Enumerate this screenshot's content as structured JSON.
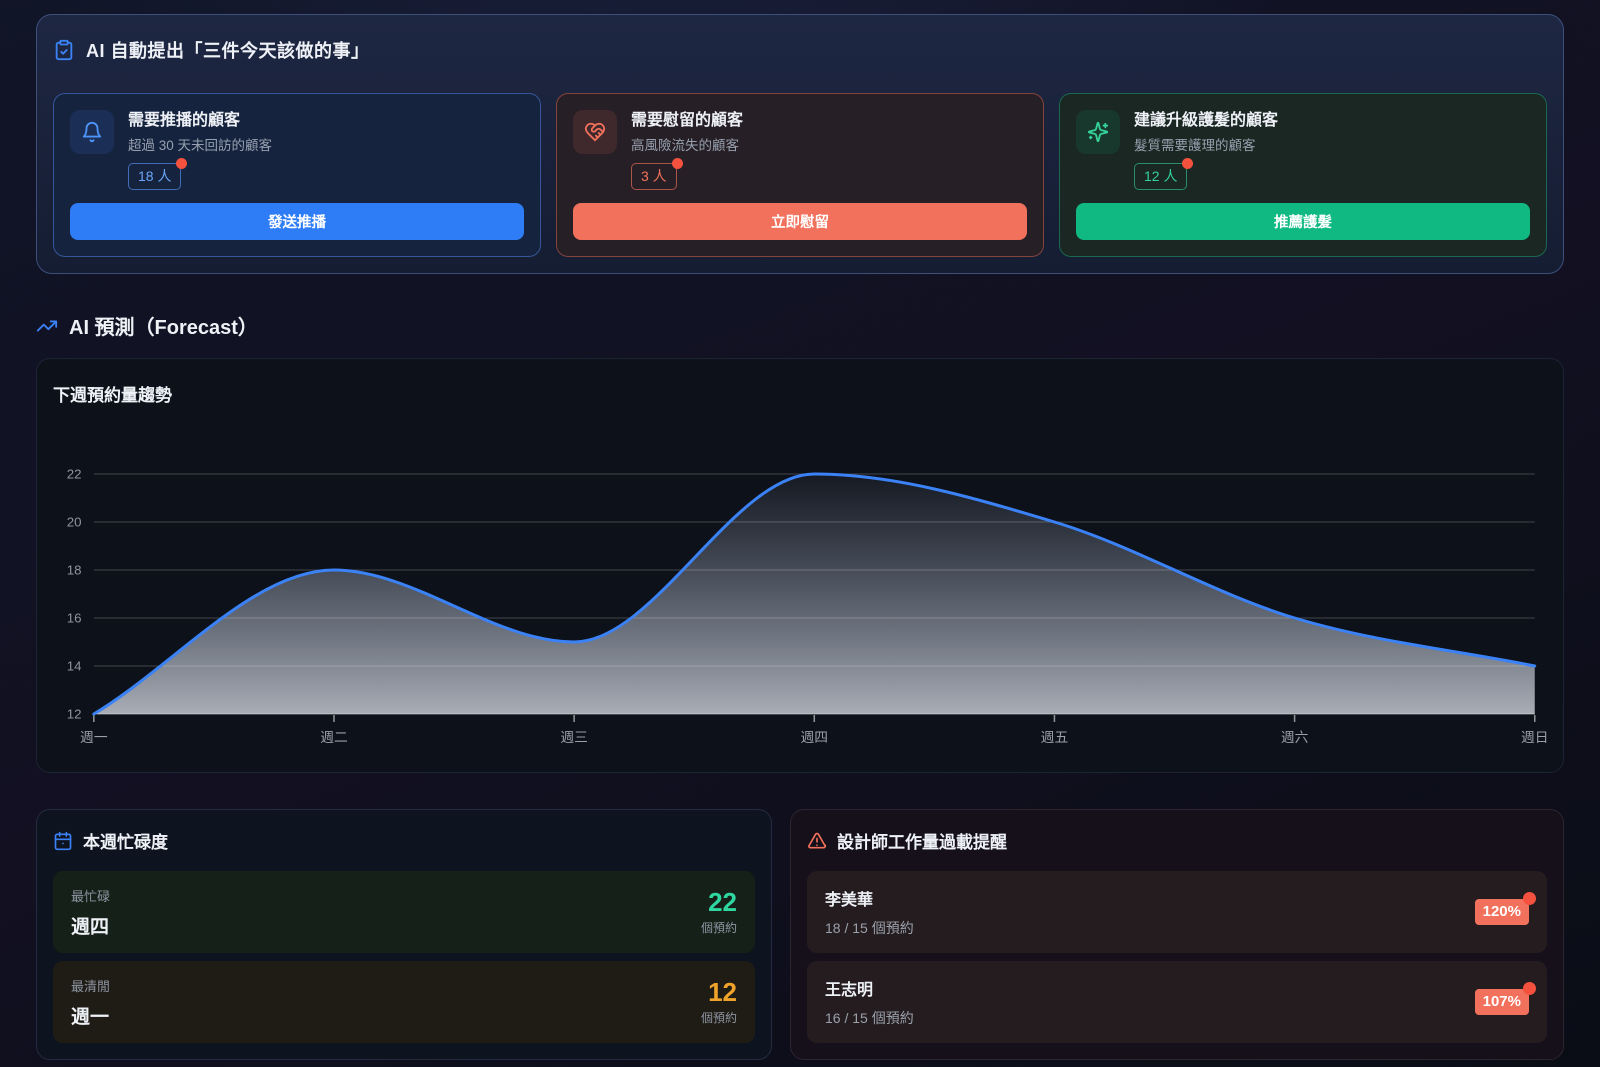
{
  "theme": {
    "accent_blue": "#3b82f6",
    "accent_coral": "#f2715c",
    "accent_green": "#10b981",
    "accent_amber": "#f0a32a",
    "alert_dot_red": "#f4523e"
  },
  "ai_tasks": {
    "title": "AI 自動提出「三件今天該做的事」",
    "header_icon": "clipboard-check-icon",
    "cards": [
      {
        "icon": "bell-icon",
        "variant": "blue",
        "title": "需要推播的顧客",
        "subtitle": "超過 30 天未回訪的顧客",
        "count": "18 人",
        "action": "發送推播"
      },
      {
        "icon": "heart-handshake-icon",
        "variant": "coral",
        "title": "需要慰留的顧客",
        "subtitle": "高風險流失的顧客",
        "count": "3 人",
        "action": "立即慰留"
      },
      {
        "icon": "sparkles-icon",
        "variant": "green",
        "title": "建議升級護髮的顧客",
        "subtitle": "髮質需要護理的顧客",
        "count": "12 人",
        "action": "推薦護髮"
      }
    ]
  },
  "forecast": {
    "section_title": "AI 預測（Forecast）",
    "section_icon": "trending-up-icon",
    "chart_title": "下週預約量趨勢"
  },
  "chart_data": {
    "type": "area",
    "title": "下週預約量趨勢",
    "categories": [
      "週一",
      "週二",
      "週三",
      "週四",
      "週五",
      "週六",
      "週日"
    ],
    "values": [
      12,
      18,
      15,
      22,
      20,
      16,
      14
    ],
    "ylim": [
      12,
      22
    ],
    "yticks": [
      12,
      14,
      16,
      18,
      20,
      22
    ],
    "xlabel": "",
    "ylabel": "",
    "grid": true,
    "legend": false,
    "line_color": "#3b82f6",
    "fill_gradient_top": "rgba(150,163,184,0.06)",
    "fill_gradient_bottom": "rgba(202,207,216,0.82)"
  },
  "busyness": {
    "title": "本週忙碌度",
    "header_icon": "calendar-icon",
    "rows": [
      {
        "label": "最忙碌",
        "day": "週四",
        "value": "22",
        "unit": "個預約",
        "variant": "green"
      },
      {
        "label": "最清閒",
        "day": "週一",
        "value": "12",
        "unit": "個預約",
        "variant": "amber"
      }
    ]
  },
  "overload": {
    "title": "設計師工作量過載提醒",
    "header_icon": "alert-triangle-icon",
    "rows": [
      {
        "name": "李美華",
        "detail": "18 / 15 個預約",
        "percent": "120%"
      },
      {
        "name": "王志明",
        "detail": "16 / 15 個預約",
        "percent": "107%"
      }
    ]
  }
}
